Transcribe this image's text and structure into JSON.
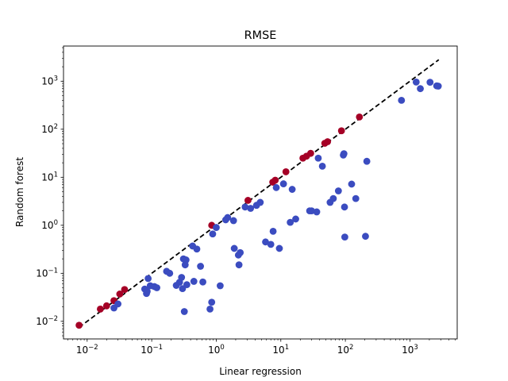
{
  "chart_data": {
    "type": "scatter",
    "title": "RMSE",
    "xlabel": "Linear regression",
    "ylabel": "Random forest",
    "xscale": "log",
    "yscale": "log",
    "xlim": [
      0.0043,
      5400
    ],
    "ylim": [
      0.0043,
      5400
    ],
    "xticks": [
      {
        "value": 0.01,
        "base": "10",
        "exp": "−2"
      },
      {
        "value": 0.1,
        "base": "10",
        "exp": "−1"
      },
      {
        "value": 1,
        "base": "10",
        "exp": "0"
      },
      {
        "value": 10,
        "base": "10",
        "exp": "1"
      },
      {
        "value": 100,
        "base": "10",
        "exp": "2"
      },
      {
        "value": 1000,
        "base": "10",
        "exp": "3"
      }
    ],
    "yticks": [
      {
        "value": 0.01,
        "base": "10",
        "exp": "−2"
      },
      {
        "value": 0.1,
        "base": "10",
        "exp": "−1"
      },
      {
        "value": 1,
        "base": "10",
        "exp": "0"
      },
      {
        "value": 10,
        "base": "10",
        "exp": "1"
      },
      {
        "value": 100,
        "base": "10",
        "exp": "2"
      },
      {
        "value": 1000,
        "base": "10",
        "exp": "3"
      }
    ],
    "grid": false,
    "legend": null,
    "reference_line": {
      "type": "y=x",
      "style": "dashed",
      "color": "#000000",
      "x_range": [
        0.0075,
        2800
      ]
    },
    "series": [
      {
        "color": "#a50026",
        "points": [
          [
            0.0075,
            0.0083
          ],
          [
            0.016,
            0.018
          ],
          [
            0.02,
            0.021
          ],
          [
            0.026,
            0.027
          ],
          [
            0.032,
            0.037
          ],
          [
            0.038,
            0.046
          ],
          [
            0.85,
            1.0
          ],
          [
            3.1,
            3.3
          ],
          [
            7.5,
            7.9
          ],
          [
            8.2,
            8.7
          ],
          [
            12,
            13
          ],
          [
            22,
            25
          ],
          [
            25,
            27.5
          ],
          [
            29,
            31.5
          ],
          [
            48,
            51
          ],
          [
            53,
            55
          ],
          [
            87,
            93
          ],
          [
            165,
            180
          ]
        ]
      },
      {
        "color": "#3b4cc0",
        "points": [
          [
            0.026,
            0.019
          ],
          [
            0.03,
            0.023
          ],
          [
            0.078,
            0.047
          ],
          [
            0.083,
            0.038
          ],
          [
            0.085,
            0.042
          ],
          [
            0.088,
            0.078
          ],
          [
            0.095,
            0.055
          ],
          [
            0.11,
            0.053
          ],
          [
            0.12,
            0.05
          ],
          [
            0.17,
            0.11
          ],
          [
            0.19,
            0.1
          ],
          [
            0.24,
            0.056
          ],
          [
            0.27,
            0.065
          ],
          [
            0.29,
            0.082
          ],
          [
            0.3,
            0.048
          ],
          [
            0.31,
            0.2
          ],
          [
            0.32,
            0.016
          ],
          [
            0.33,
            0.15
          ],
          [
            0.34,
            0.19
          ],
          [
            0.35,
            0.058
          ],
          [
            0.43,
            0.37
          ],
          [
            0.45,
            0.068
          ],
          [
            0.5,
            0.32
          ],
          [
            0.57,
            0.14
          ],
          [
            0.62,
            0.066
          ],
          [
            0.8,
            0.018
          ],
          [
            0.85,
            0.025
          ],
          [
            0.88,
            0.66
          ],
          [
            1.0,
            0.9
          ],
          [
            1.15,
            0.055
          ],
          [
            1.4,
            1.3
          ],
          [
            1.5,
            1.45
          ],
          [
            1.85,
            1.25
          ],
          [
            1.9,
            0.33
          ],
          [
            2.2,
            0.24
          ],
          [
            2.25,
            0.15
          ],
          [
            2.35,
            0.27
          ],
          [
            2.8,
            2.4
          ],
          [
            3.4,
            2.25
          ],
          [
            4.2,
            2.6
          ],
          [
            4.8,
            3.0
          ],
          [
            5.8,
            0.45
          ],
          [
            7.0,
            0.4
          ],
          [
            7.6,
            0.75
          ],
          [
            8.5,
            6.1
          ],
          [
            9.5,
            0.33
          ],
          [
            11,
            7.3
          ],
          [
            14,
            1.15
          ],
          [
            15,
            5.6
          ],
          [
            17,
            1.35
          ],
          [
            28,
            2.0
          ],
          [
            30,
            2.0
          ],
          [
            36,
            1.9
          ],
          [
            38,
            25
          ],
          [
            44,
            17
          ],
          [
            58,
            3.0
          ],
          [
            65,
            3.6
          ],
          [
            78,
            5.2
          ],
          [
            93,
            29
          ],
          [
            95,
            31
          ],
          [
            97,
            2.4
          ],
          [
            98,
            0.57
          ],
          [
            125,
            7.2
          ],
          [
            145,
            3.6
          ],
          [
            205,
            0.59
          ],
          [
            215,
            21.5
          ],
          [
            740,
            400
          ],
          [
            1250,
            960
          ],
          [
            1450,
            700
          ],
          [
            2050,
            950
          ],
          [
            2600,
            800
          ],
          [
            2750,
            790
          ]
        ]
      }
    ]
  }
}
